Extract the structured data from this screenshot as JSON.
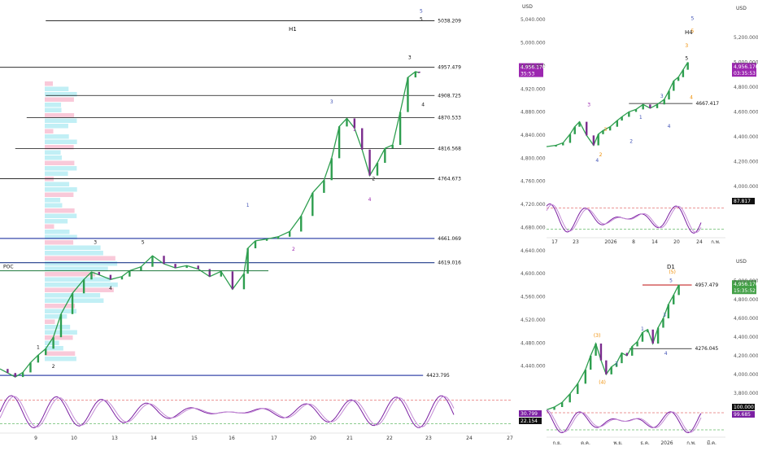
{
  "chart_data": [
    {
      "panel": "H1",
      "type": "line",
      "title": "H1",
      "currency": "USD",
      "ylim": [
        4400,
        5060
      ],
      "yticks": [
        4440,
        4480,
        4520,
        4560,
        4600,
        4640,
        4680,
        4720,
        4760,
        4800,
        4840,
        4880,
        4920,
        4960,
        5000,
        5040
      ],
      "ytick_labels": [
        "4,440.000",
        "4,480.000",
        "4,520.000",
        "4,560.000",
        "4,600.000",
        "4,640.000",
        "4,680.000",
        "4,720.000",
        "4,760.000",
        "4,800.000",
        "4,840.000",
        "4,880.000",
        "4,920.000",
        "4,960.000",
        "5,000.000",
        "5,040.000"
      ],
      "x_ticks": [
        "9",
        "10",
        "13",
        "14",
        "15",
        "16",
        "17",
        "20",
        "21",
        "22",
        "23",
        "24",
        "27"
      ],
      "x_tick_pos": [
        0,
        1,
        2,
        3,
        4,
        5,
        6,
        7,
        8,
        9,
        10,
        11,
        12
      ],
      "xlim": [
        -0.4,
        13.0
      ],
      "price": {
        "x": [
          -0.4,
          -0.2,
          0,
          0.2,
          0.4,
          0.6,
          0.8,
          1.0,
          1.2,
          1.5,
          1.8,
          2.0,
          2.2,
          2.5,
          2.8,
          3.0,
          3.3,
          3.6,
          3.9,
          4.2,
          4.5,
          4.8,
          5.1,
          5.4,
          5.7,
          6.0,
          6.1,
          6.3,
          6.6,
          6.9,
          7.2,
          7.5,
          7.8,
          8.1,
          8.3,
          8.5,
          8.7,
          8.9,
          9.1,
          9.3,
          9.5,
          9.7,
          9.9,
          10.1,
          10.3,
          10.5,
          10.6
        ],
        "y": [
          4435,
          4428,
          4421,
          4429,
          4446,
          4459,
          4470,
          4490,
          4530,
          4566,
          4590,
          4603,
          4598,
          4590,
          4595,
          4605,
          4612,
          4631,
          4617,
          4610,
          4614,
          4608,
          4595,
          4604,
          4573,
          4600,
          4644,
          4657,
          4660,
          4664,
          4673,
          4700,
          4740,
          4762,
          4800,
          4855,
          4869,
          4852,
          4815,
          4770,
          4792,
          4817,
          4823,
          4880,
          4940,
          4950,
          4948
        ]
      },
      "stoch_panel": {
        "ylim": [
          0,
          100
        ],
        "levels": [
          80,
          20
        ]
      },
      "annotations": [
        {
          "label": "5038.209",
          "y": 5038.209,
          "x0": 0.8,
          "x1": 11.0
        },
        {
          "label": "4957.479",
          "y": 4957.479,
          "x0": -0.4,
          "x1": 11.0
        },
        {
          "label": "4908.725",
          "y": 4908.725,
          "x0": 0.8,
          "x1": 11.0
        },
        {
          "label": "4870.533",
          "y": 4870.533,
          "x0": 0.3,
          "x1": 11.0
        },
        {
          "label": "4816.568",
          "y": 4816.568,
          "x0": 0.0,
          "x1": 11.0
        },
        {
          "label": "4764.673",
          "y": 4764.673,
          "x0": -0.4,
          "x1": 11.0
        },
        {
          "label": "4661.069",
          "y": 4661.069,
          "x0": -0.4,
          "x1": 11.0
        },
        {
          "label": "4619.016",
          "y": 4619.016,
          "x0": -0.4,
          "x1": 11.0
        },
        {
          "label": "4423.795",
          "y": 4423.795,
          "x0": -0.4,
          "x1": 10.7
        }
      ],
      "poc_label": "POC",
      "poc_value": 4605,
      "price_tag": {
        "price": "4,956.170",
        "timer": "35:53",
        "value": 4956.17
      },
      "stoch_tags": [
        {
          "label": "30.799",
          "color": "#7b1fa2"
        },
        {
          "label": "22.154",
          "color": "#111111"
        }
      ],
      "wave_labels": [
        {
          "t": "5",
          "x": 10.65,
          "y": 5052,
          "c": "#3f51b5"
        },
        {
          "t": "5",
          "x": 10.65,
          "y": 5038,
          "c": "#111111"
        },
        {
          "t": "3",
          "x": 10.35,
          "y": 4972,
          "c": "#111111"
        },
        {
          "t": "4",
          "x": 10.7,
          "y": 4890,
          "c": "#111111"
        },
        {
          "t": "3",
          "x": 8.3,
          "y": 4895,
          "c": "#3f51b5"
        },
        {
          "t": "1",
          "x": 8.9,
          "y": 4847,
          "c": "#9c27b0"
        },
        {
          "t": "2",
          "x": 9.4,
          "y": 4762,
          "c": "#111111"
        },
        {
          "t": "4",
          "x": 9.3,
          "y": 4726,
          "c": "#9c27b0"
        },
        {
          "t": "1",
          "x": 6.1,
          "y": 4716,
          "c": "#3f51b5"
        },
        {
          "t": "2",
          "x": 7.3,
          "y": 4640,
          "c": "#9c27b0"
        },
        {
          "t": "3",
          "x": 2.1,
          "y": 4652,
          "c": "#111111"
        },
        {
          "t": "5",
          "x": 3.35,
          "y": 4652,
          "c": "#111111"
        },
        {
          "t": "4",
          "x": 2.5,
          "y": 4572,
          "c": "#111111"
        },
        {
          "t": "1",
          "x": 0.6,
          "y": 4470,
          "c": "#111111"
        },
        {
          "t": "2",
          "x": 1.0,
          "y": 4437,
          "c": "#111111"
        }
      ]
    },
    {
      "panel": "H4",
      "type": "line",
      "title": "H4",
      "currency": "USD",
      "ylim": [
        3900,
        5450
      ],
      "yticks": [
        4000,
        4200,
        4400,
        4600,
        4800,
        5000,
        5200
      ],
      "ytick_labels": [
        "4,000.000",
        "4,200.000",
        "4,400.000",
        "4,600.000",
        "4,800.000",
        "5,000.000",
        "5,200.000"
      ],
      "x_ticks": [
        "17",
        "23",
        "2026",
        "8",
        "14",
        "20",
        "24",
        "ก.พ."
      ],
      "x_tick_pos": [
        0,
        1,
        2,
        3,
        4,
        5,
        6,
        7
      ],
      "xlim": [
        -0.2,
        7.4
      ],
      "price": {
        "x": [
          -0.2,
          0.2,
          0.5,
          0.8,
          1.0,
          1.2,
          1.5,
          1.8,
          2.0,
          2.2,
          2.5,
          2.8,
          3.0,
          3.3,
          3.6,
          3.9,
          4.2,
          4.5,
          4.8,
          5.0,
          5.2,
          5.4,
          5.6,
          5.8
        ],
        "y": [
          4320,
          4330,
          4350,
          4420,
          4480,
          4520,
          4410,
          4330,
          4420,
          4450,
          4480,
          4530,
          4560,
          4600,
          4620,
          4660,
          4630,
          4660,
          4700,
          4770,
          4850,
          4880,
          4940,
          5000
        ]
      },
      "stoch_panel": {
        "ylim": [
          0,
          100
        ],
        "levels": [
          80,
          20
        ]
      },
      "annotations": [
        {
          "label": "4667.417",
          "y": 4667.417,
          "x0": 3.3,
          "x1": 6.0
        }
      ],
      "price_tag": {
        "price": "4,956.170",
        "timer": "03:35:53",
        "value": 4956.17
      },
      "stoch_tags": [
        {
          "label": "87.817",
          "color": "#111111"
        }
      ],
      "wave_labels": [
        {
          "t": "5",
          "x": 6.0,
          "y": 5340,
          "c": "#3f51b5"
        },
        {
          "t": "5",
          "x": 6.0,
          "y": 5240,
          "c": "#ef8c00"
        },
        {
          "t": "3",
          "x": 5.75,
          "y": 5120,
          "c": "#ef8c00"
        },
        {
          "t": "5",
          "x": 5.75,
          "y": 5020,
          "c": "#111111"
        },
        {
          "t": "4",
          "x": 5.95,
          "y": 4705,
          "c": "#ef8c00"
        },
        {
          "t": "3",
          "x": 4.7,
          "y": 4715,
          "c": "#3f51b5"
        },
        {
          "t": "3",
          "x": 1.6,
          "y": 4645,
          "c": "#9c27b0"
        },
        {
          "t": "1",
          "x": 3.8,
          "y": 4545,
          "c": "#3f51b5"
        },
        {
          "t": "3",
          "x": 2.3,
          "y": 4445,
          "c": "#ef8c00"
        },
        {
          "t": "4",
          "x": 5.0,
          "y": 4470,
          "c": "#3f51b5"
        },
        {
          "t": "2",
          "x": 3.4,
          "y": 4350,
          "c": "#3f51b5"
        },
        {
          "t": "2",
          "x": 2.1,
          "y": 4240,
          "c": "#ef8c00"
        },
        {
          "t": "4",
          "x": 1.95,
          "y": 4195,
          "c": "#3f51b5"
        }
      ]
    },
    {
      "panel": "D1",
      "type": "line",
      "title": "D1",
      "currency": "USD",
      "ylim": [
        3650,
        5150
      ],
      "yticks": [
        3800,
        4000,
        4200,
        4400,
        4600,
        4800,
        5000
      ],
      "ytick_labels": [
        "3,800.000",
        "4,000.000",
        "4,200.000",
        "4,400.000",
        "4,600.000",
        "4,800.000",
        "5,000.000"
      ],
      "x_ticks": [
        "ก.ย.",
        "ต.ค.",
        "พ.ย.",
        "ธ.ค.",
        "2026",
        "ก.พ.",
        "มี.ค."
      ],
      "x_tick_pos": [
        0,
        1,
        2,
        3,
        4,
        5,
        6
      ],
      "xlim": [
        -0.6,
        6.3
      ],
      "price": {
        "x": [
          -0.6,
          -0.3,
          0,
          0.3,
          0.6,
          0.9,
          1.1,
          1.3,
          1.5,
          1.7,
          1.9,
          2.1,
          2.3,
          2.5,
          2.7,
          2.9,
          3.1,
          3.3,
          3.5,
          3.7,
          3.9,
          4.1,
          4.3,
          4.5
        ],
        "y": [
          3620,
          3650,
          3700,
          3790,
          3900,
          4050,
          4200,
          4330,
          4150,
          4000,
          4080,
          4120,
          4230,
          4200,
          4300,
          4350,
          4450,
          4480,
          4330,
          4500,
          4600,
          4750,
          4850,
          4960
        ]
      },
      "stoch_panel": {
        "ylim": [
          0,
          100
        ],
        "levels": [
          80,
          20
        ]
      },
      "annotations": [
        {
          "label": "4957.479",
          "y": 4957.479,
          "x0": 3.1,
          "x1": 5.0
        },
        {
          "label": "4276.045",
          "y": 4276.045,
          "x0": 2.6,
          "x1": 5.0
        }
      ],
      "price_tag": {
        "price": "4,956.170",
        "timer": "15:35:52",
        "value": 4956.17
      },
      "stoch_tags": [
        {
          "label": "100.000",
          "color": "#111111"
        },
        {
          "label": "99.685",
          "color": "#7b1fa2"
        }
      ],
      "wave_labels": [
        {
          "t": "(5)",
          "x": 4.25,
          "y": 5080,
          "c": "#ef8c00"
        },
        {
          "t": "5",
          "x": 4.2,
          "y": 4990,
          "c": "#3f51b5"
        },
        {
          "t": "3",
          "x": 3.95,
          "y": 4620,
          "c": "#3f51b5"
        },
        {
          "t": "1",
          "x": 3.1,
          "y": 4470,
          "c": "#3f51b5"
        },
        {
          "t": "4",
          "x": 4.0,
          "y": 4210,
          "c": "#3f51b5"
        },
        {
          "t": "(3)",
          "x": 1.35,
          "y": 4400,
          "c": "#ef8c00"
        },
        {
          "t": "2",
          "x": 2.1,
          "y": 4100,
          "c": "#3f51b5"
        },
        {
          "t": "(4)",
          "x": 1.55,
          "y": 3900,
          "c": "#ef8c00"
        }
      ]
    }
  ]
}
